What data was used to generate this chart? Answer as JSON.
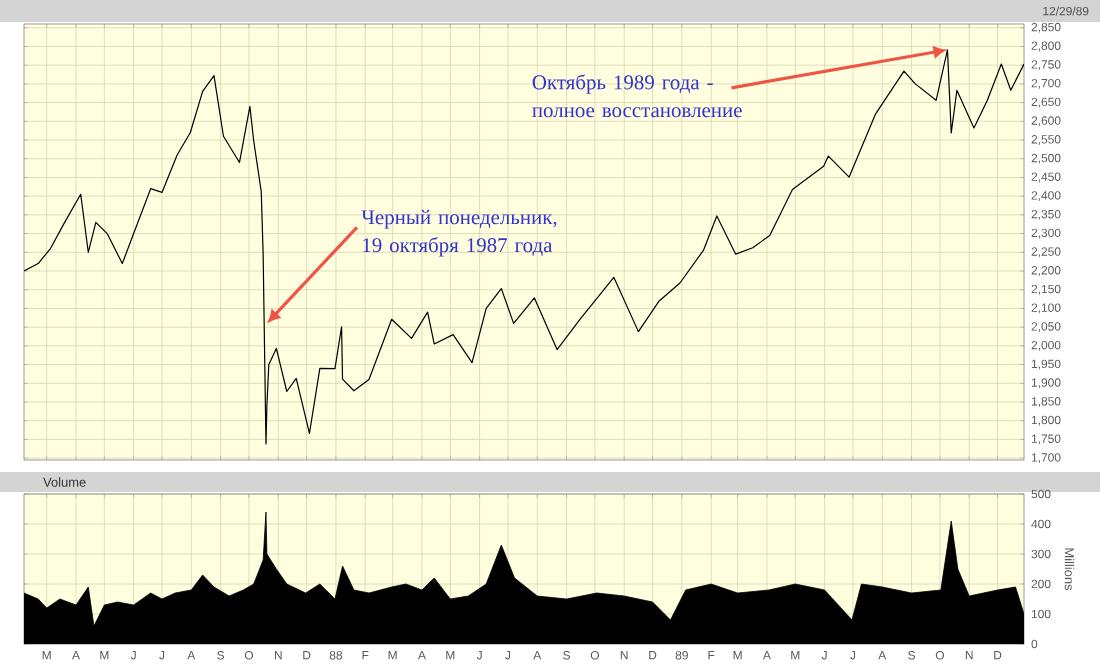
{
  "chart_data": [
    {
      "type": "line",
      "color": "#000000",
      "grid": true,
      "tick_labels": "y",
      "x": [
        "1987-02-05",
        "1987-02-20",
        "1987-03-05",
        "1987-03-20",
        "1987-04-06",
        "1987-04-14",
        "1987-04-22",
        "1987-05-04",
        "1987-05-20",
        "1987-06-01",
        "1987-06-19",
        "1987-07-01",
        "1987-07-17",
        "1987-07-31",
        "1987-08-13",
        "1987-08-25",
        "1987-09-04",
        "1987-09-21",
        "1987-10-02",
        "1987-10-06",
        "1987-10-14",
        "1987-10-16",
        "1987-10-19",
        "1987-10-20",
        "1987-10-22",
        "1987-10-30",
        "1987-11-10",
        "1987-11-20",
        "1987-12-04",
        "1987-12-15",
        "1987-12-31",
        "1988-01-07",
        "1988-01-08",
        "1988-01-20",
        "1988-02-05",
        "1988-02-29",
        "1988-03-21",
        "1988-04-07",
        "1988-04-14",
        "1988-05-04",
        "1988-05-24",
        "1988-06-08",
        "1988-06-24",
        "1988-07-07",
        "1988-07-29",
        "1988-08-22",
        "1988-09-15",
        "1988-10-21",
        "1988-11-16",
        "1988-12-08",
        "1988-12-30",
        "1989-01-24",
        "1989-02-07",
        "1989-02-27",
        "1989-03-17",
        "1989-04-04",
        "1989-04-28",
        "1989-05-31",
        "1989-06-05",
        "1989-06-27",
        "1989-07-25",
        "1989-08-24",
        "1989-09-05",
        "1989-09-27",
        "1989-10-09",
        "1989-10-13",
        "1989-10-19",
        "1989-11-06",
        "1989-11-20",
        "1989-12-05",
        "1989-12-15",
        "1989-12-29"
      ],
      "values": [
        2200,
        2220,
        2260,
        2330,
        2405,
        2250,
        2330,
        2300,
        2220,
        2300,
        2420,
        2410,
        2510,
        2570,
        2680,
        2722,
        2560,
        2490,
        2640,
        2548,
        2412,
        2246,
        1738,
        1841,
        1950,
        1993,
        1878,
        1913,
        1766,
        1940,
        1939,
        2051,
        1911,
        1880,
        1910,
        2071,
        2020,
        2090,
        2005,
        2030,
        1955,
        2100,
        2153,
        2060,
        2128,
        1990,
        2070,
        2183,
        2038,
        2120,
        2168,
        2256,
        2347,
        2245,
        2262,
        2295,
        2418,
        2480,
        2507,
        2451,
        2620,
        2734,
        2700,
        2656,
        2791,
        2569,
        2683,
        2582,
        2655,
        2753,
        2683,
        2753
      ],
      "xlim": [
        "1987-02-05",
        "1989-12-29"
      ],
      "ylim": [
        1695,
        2860
      ],
      "xticks": [
        {
          "value": "1987-03-01",
          "label": null
        },
        {
          "value": "1987-04-01",
          "label": null
        },
        {
          "value": "1987-05-01",
          "label": null
        },
        {
          "value": "1987-06-01",
          "label": null
        },
        {
          "value": "1987-07-01",
          "label": null
        },
        {
          "value": "1987-08-01",
          "label": null
        },
        {
          "value": "1987-09-01",
          "label": null
        },
        {
          "value": "1987-10-01",
          "label": null
        },
        {
          "value": "1987-11-01",
          "label": null
        },
        {
          "value": "1987-12-01",
          "label": null
        },
        {
          "value": "1988-01-01",
          "label": null
        },
        {
          "value": "1988-02-01",
          "label": null
        },
        {
          "value": "1988-03-01",
          "label": null
        },
        {
          "value": "1988-04-01",
          "label": null
        },
        {
          "value": "1988-05-01",
          "label": null
        },
        {
          "value": "1988-06-01",
          "label": null
        },
        {
          "value": "1988-07-01",
          "label": null
        },
        {
          "value": "1988-08-01",
          "label": null
        },
        {
          "value": "1988-09-01",
          "label": null
        },
        {
          "value": "1988-10-01",
          "label": null
        },
        {
          "value": "1988-11-01",
          "label": null
        },
        {
          "value": "1988-12-01",
          "label": null
        },
        {
          "value": "1989-01-01",
          "label": null
        },
        {
          "value": "1989-02-01",
          "label": null
        },
        {
          "value": "1989-03-01",
          "label": null
        },
        {
          "value": "1989-04-01",
          "label": null
        },
        {
          "value": "1989-05-01",
          "label": null
        },
        {
          "value": "1989-06-01",
          "label": null
        },
        {
          "value": "1989-07-01",
          "label": null
        },
        {
          "value": "1989-08-01",
          "label": null
        },
        {
          "value": "1989-09-01",
          "label": null
        },
        {
          "value": "1989-10-01",
          "label": null
        },
        {
          "value": "1989-11-01",
          "label": null
        },
        {
          "value": "1989-12-01",
          "label": null
        }
      ],
      "yticks": [
        {
          "value": 1700,
          "label": "1,700"
        },
        {
          "value": 1750,
          "label": "1,750"
        },
        {
          "value": 1800,
          "label": "1,800"
        },
        {
          "value": 1850,
          "label": "1,850"
        },
        {
          "value": 1900,
          "label": "1,900"
        },
        {
          "value": 1950,
          "label": "1,950"
        },
        {
          "value": 2000,
          "label": "2,000"
        },
        {
          "value": 2050,
          "label": "2,050"
        },
        {
          "value": 2100,
          "label": "2,100"
        },
        {
          "value": 2150,
          "label": "2,150"
        },
        {
          "value": 2200,
          "label": "2,200"
        },
        {
          "value": 2250,
          "label": "2,250"
        },
        {
          "value": 2300,
          "label": "2,300"
        },
        {
          "value": 2350,
          "label": "2,350"
        },
        {
          "value": 2400,
          "label": "2,400"
        },
        {
          "value": 2450,
          "label": "2,450"
        },
        {
          "value": 2500,
          "label": "2,500"
        },
        {
          "value": 2550,
          "label": "2,550"
        },
        {
          "value": 2600,
          "label": "2,600"
        },
        {
          "value": 2650,
          "label": "2,650"
        },
        {
          "value": 2700,
          "label": "2,700"
        },
        {
          "value": 2750,
          "label": "2,750"
        },
        {
          "value": 2800,
          "label": "2,800"
        },
        {
          "value": 2850,
          "label": "2,850"
        }
      ],
      "annotations": [
        {
          "text": "Черный понедельник, 19 октября 1987 года",
          "x": "1987-10-20",
          "y": 2060
        },
        {
          "text": "Октябрь 1989 года - полное восстановление",
          "x": "1989-10-09",
          "y": 2791
        },
        "12/29/89"
      ]
    },
    {
      "type": "area",
      "title": "Volume",
      "ylabel": "Millions",
      "color": "#000000",
      "grid": true,
      "x": [
        "1987-02-05",
        "1987-02-20",
        "1987-03-01",
        "1987-03-15",
        "1987-04-01",
        "1987-04-14",
        "1987-04-20",
        "1987-05-01",
        "1987-05-15",
        "1987-06-01",
        "1987-06-19",
        "1987-07-01",
        "1987-07-15",
        "1987-08-01",
        "1987-08-13",
        "1987-08-25",
        "1987-09-10",
        "1987-09-25",
        "1987-10-06",
        "1987-10-16",
        "1987-10-19",
        "1987-10-20",
        "1987-10-30",
        "1987-11-10",
        "1987-11-30",
        "1987-12-15",
        "1987-12-31",
        "1988-01-08",
        "1988-01-20",
        "1988-02-05",
        "1988-02-29",
        "1988-03-15",
        "1988-04-01",
        "1988-04-14",
        "1988-05-01",
        "1988-05-20",
        "1988-06-08",
        "1988-06-24",
        "1988-07-08",
        "1988-08-01",
        "1988-09-01",
        "1988-10-03",
        "1988-11-01",
        "1988-12-01",
        "1988-12-20",
        "1989-01-05",
        "1989-02-01",
        "1989-03-01",
        "1989-04-03",
        "1989-05-01",
        "1989-06-01",
        "1989-06-30",
        "1989-07-10",
        "1989-08-01",
        "1989-09-01",
        "1989-10-02",
        "1989-10-13",
        "1989-10-20",
        "1989-11-01",
        "1989-12-01",
        "1989-12-20",
        "1989-12-29"
      ],
      "values": [
        170,
        150,
        120,
        150,
        130,
        190,
        60,
        130,
        140,
        130,
        170,
        150,
        170,
        180,
        230,
        190,
        160,
        180,
        200,
        280,
        440,
        300,
        250,
        200,
        170,
        200,
        150,
        260,
        180,
        170,
        190,
        200,
        180,
        220,
        150,
        160,
        200,
        330,
        220,
        160,
        150,
        170,
        160,
        140,
        80,
        180,
        200,
        170,
        180,
        200,
        180,
        80,
        200,
        190,
        170,
        180,
        410,
        250,
        160,
        180,
        190,
        100
      ],
      "xlim": [
        "1987-02-05",
        "1989-12-29"
      ],
      "ylim": [
        0,
        500
      ],
      "yticks": [
        0,
        100,
        200,
        300,
        400,
        500
      ],
      "xticks": [
        {
          "value": "1987-03-01",
          "label": "M"
        },
        {
          "value": "1987-04-01",
          "label": "A"
        },
        {
          "value": "1987-05-01",
          "label": "M"
        },
        {
          "value": "1987-06-01",
          "label": "J"
        },
        {
          "value": "1987-07-01",
          "label": "J"
        },
        {
          "value": "1987-08-01",
          "label": "A"
        },
        {
          "value": "1987-09-01",
          "label": "S"
        },
        {
          "value": "1987-10-01",
          "label": "O"
        },
        {
          "value": "1987-11-01",
          "label": "N"
        },
        {
          "value": "1987-12-01",
          "label": "D"
        },
        {
          "value": "1988-01-01",
          "label": "88"
        },
        {
          "value": "1988-02-01",
          "label": "F"
        },
        {
          "value": "1988-03-01",
          "label": "M"
        },
        {
          "value": "1988-04-01",
          "label": "A"
        },
        {
          "value": "1988-05-01",
          "label": "M"
        },
        {
          "value": "1988-06-01",
          "label": "J"
        },
        {
          "value": "1988-07-01",
          "label": "J"
        },
        {
          "value": "1988-08-01",
          "label": "A"
        },
        {
          "value": "1988-09-01",
          "label": "S"
        },
        {
          "value": "1988-10-01",
          "label": "O"
        },
        {
          "value": "1988-11-01",
          "label": "N"
        },
        {
          "value": "1988-12-01",
          "label": "D"
        },
        {
          "value": "1989-01-01",
          "label": "89"
        },
        {
          "value": "1989-02-01",
          "label": "F"
        },
        {
          "value": "1989-03-01",
          "label": "M"
        },
        {
          "value": "1989-04-01",
          "label": "A"
        },
        {
          "value": "1989-05-01",
          "label": "M"
        },
        {
          "value": "1989-06-01",
          "label": "J"
        },
        {
          "value": "1989-07-01",
          "label": "J"
        },
        {
          "value": "1989-08-01",
          "label": "A"
        },
        {
          "value": "1989-09-01",
          "label": "S"
        },
        {
          "value": "1989-10-01",
          "label": "O"
        },
        {
          "value": "1989-11-01",
          "label": "N"
        },
        {
          "value": "1989-12-01",
          "label": "D"
        }
      ]
    }
  ]
}
